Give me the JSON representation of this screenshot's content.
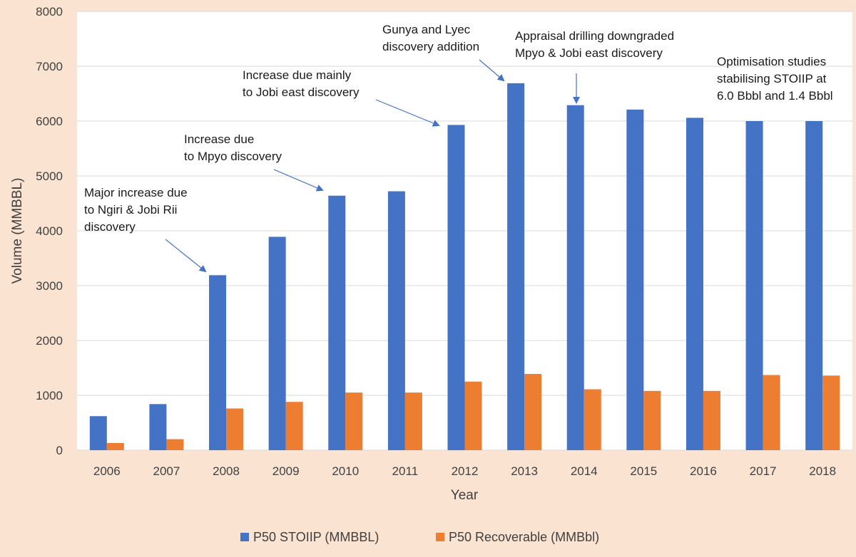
{
  "chart_data": {
    "type": "bar",
    "title": "",
    "xlabel": "Year",
    "ylabel": "Volume (MMBBL)",
    "ylim": [
      0,
      8000
    ],
    "yticks": [
      0,
      1000,
      2000,
      3000,
      4000,
      5000,
      6000,
      7000,
      8000
    ],
    "categories": [
      "2006",
      "2007",
      "2008",
      "2009",
      "2010",
      "2011",
      "2012",
      "2013",
      "2014",
      "2015",
      "2016",
      "2017",
      "2018"
    ],
    "series": [
      {
        "name": "P50 STOIIP (MMBBL)",
        "color": "#4472c4",
        "values": [
          620,
          840,
          3190,
          3890,
          4640,
          4720,
          5930,
          6690,
          6290,
          6210,
          6060,
          6000,
          6000
        ]
      },
      {
        "name": "P50 Recoverable (MMBbl)",
        "color": "#ed7d31",
        "values": [
          130,
          200,
          760,
          880,
          1050,
          1050,
          1250,
          1390,
          1110,
          1080,
          1080,
          1370,
          1360
        ]
      }
    ],
    "grid": true,
    "legend": "bottom-center",
    "annotations": [
      {
        "lines": [
          "Major increase due",
          "to Ngiri & Jobi Rii",
          "discovery"
        ],
        "target_category": "2008"
      },
      {
        "lines": [
          "Increase due",
          "to Mpyo discovery"
        ],
        "target_category": "2010"
      },
      {
        "lines": [
          "Increase due mainly",
          "to Jobi east discovery"
        ],
        "target_category": "2012"
      },
      {
        "lines": [
          "Gunya and Lyec",
          "discovery addition"
        ],
        "target_category": "2013"
      },
      {
        "lines": [
          "Appraisal drilling downgraded",
          "Mpyo & Jobi east discovery"
        ],
        "target_category": "2014"
      },
      {
        "lines": [
          "Optimisation studies",
          "stabilising STOIIP at",
          "6.0 Bbbl and 1.4 Bbbl"
        ],
        "target_category": "2018"
      }
    ]
  }
}
